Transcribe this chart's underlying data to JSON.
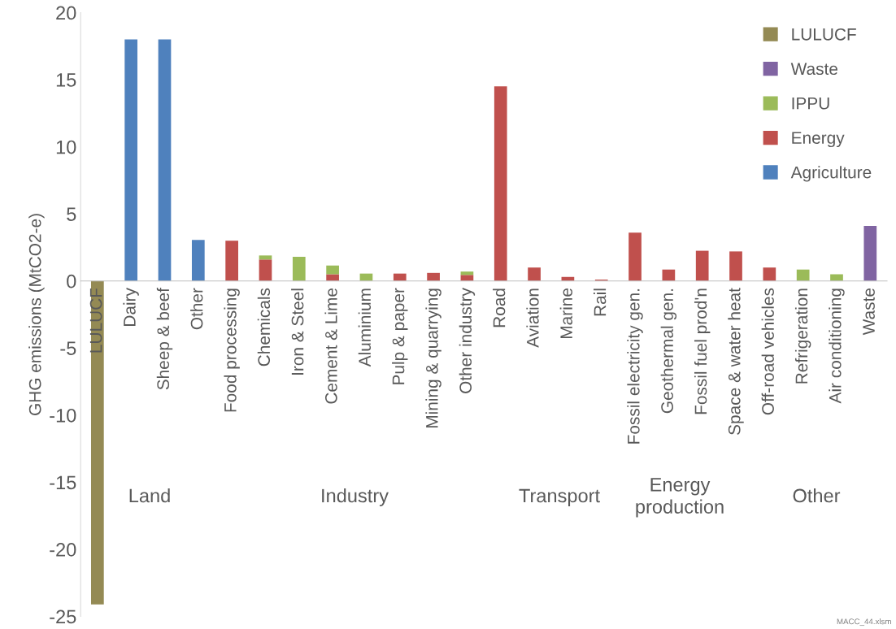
{
  "chart_data": {
    "type": "bar",
    "stacked": true,
    "ylabel": "GHG emissions (MtCO2-e)",
    "categories": [
      "LULUCF",
      "Dairy",
      "Sheep & beef",
      "Other",
      "Food processing",
      "Chemicals",
      "Iron & Steel",
      "Cement & Lime",
      "Aluminium",
      "Pulp & paper",
      "Mining & quarrying",
      "Other industry",
      "Road",
      "Aviation",
      "Marine",
      "Rail",
      "Fossil electricity gen.",
      "Geothermal gen.",
      "Fossil fuel prod'n",
      "Space & water heat",
      "Off-road vehicles",
      "Refrigeration",
      "Air conditioning",
      "Waste"
    ],
    "series": [
      {
        "name": "Agriculture",
        "color": "#4f81bd",
        "values": [
          null,
          18,
          18,
          3.05,
          null,
          null,
          null,
          null,
          null,
          null,
          null,
          null,
          null,
          null,
          null,
          null,
          null,
          null,
          null,
          null,
          null,
          null,
          null,
          null
        ]
      },
      {
        "name": "Energy",
        "color": "#c0504d",
        "values": [
          null,
          null,
          null,
          null,
          3.0,
          1.6,
          null,
          0.5,
          null,
          0.55,
          0.6,
          0.45,
          14.5,
          1.0,
          0.3,
          0.1,
          3.6,
          0.85,
          2.25,
          2.2,
          1.0,
          null,
          null,
          null
        ]
      },
      {
        "name": "IPPU",
        "color": "#9bbb59",
        "values": [
          null,
          null,
          null,
          null,
          null,
          0.3,
          1.8,
          0.65,
          0.55,
          null,
          null,
          0.25,
          null,
          null,
          null,
          null,
          null,
          null,
          null,
          null,
          null,
          0.85,
          0.5,
          null
        ]
      },
      {
        "name": "Waste",
        "color": "#8064a2",
        "values": [
          null,
          null,
          null,
          null,
          null,
          null,
          null,
          null,
          null,
          null,
          null,
          null,
          null,
          null,
          null,
          null,
          null,
          null,
          null,
          null,
          null,
          null,
          null,
          4.1
        ]
      },
      {
        "name": "LULUCF",
        "color": "#948a54",
        "values": [
          -24.1,
          null,
          null,
          null,
          null,
          null,
          null,
          null,
          null,
          null,
          null,
          null,
          null,
          null,
          null,
          null,
          null,
          null,
          null,
          null,
          null,
          null,
          null,
          null
        ]
      }
    ],
    "ylim": [
      -25,
      20
    ],
    "yticks": [
      -25,
      -20,
      -15,
      -10,
      -5,
      0,
      5,
      10,
      15,
      20
    ],
    "grid": false,
    "legend": "top right",
    "annotations": [
      "Land",
      "Industry",
      "Transport",
      "Energy\nproduction",
      "Other",
      "MACC_44.xlsm"
    ]
  }
}
